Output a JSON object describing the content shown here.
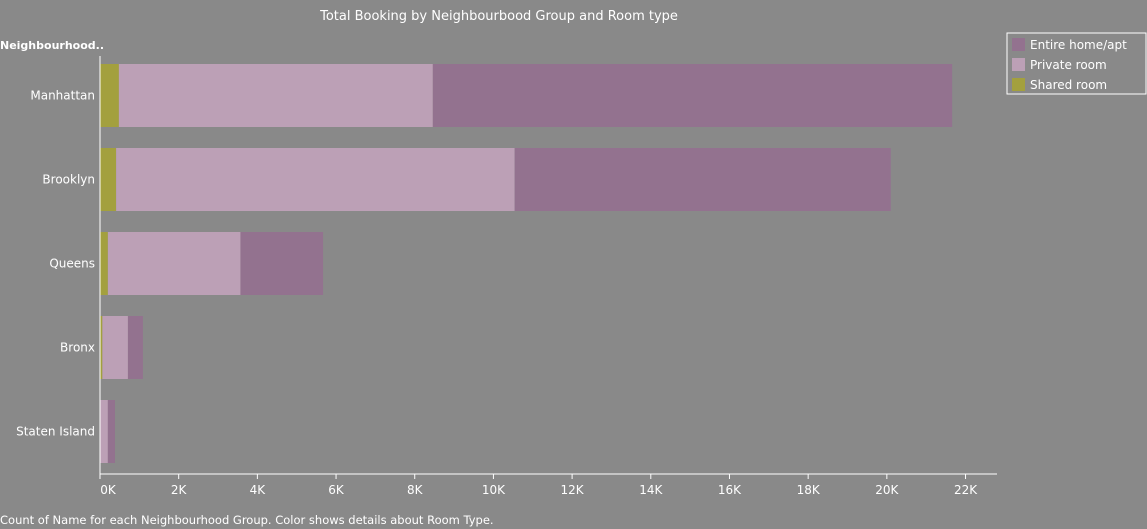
{
  "chart_data": {
    "type": "bar",
    "orientation": "horizontal",
    "stacked": true,
    "title": "Total Booking by Neighbourbood Group and Room type",
    "row_header": "Neighbourhood..",
    "caption": "Count of Name for each Neighbourhood Group.  Color shows details about Room Type.",
    "categories": [
      "Manhattan",
      "Brooklyn",
      "Queens",
      "Bronx",
      "Staten Island"
    ],
    "series": [
      {
        "name": "Shared room",
        "color": "#a3a03e",
        "values": [
          480,
          410,
          200,
          60,
          10
        ]
      },
      {
        "name": "Private room",
        "color": "#bca0b6",
        "values": [
          7980,
          10130,
          3370,
          650,
          190
        ]
      },
      {
        "name": "Entire home/apt",
        "color": "#93728f",
        "values": [
          13200,
          9560,
          2100,
          380,
          180
        ]
      }
    ],
    "legend": {
      "position": "top-right",
      "items": [
        {
          "label": "Entire home/apt",
          "color": "#93728f"
        },
        {
          "label": "Private room",
          "color": "#bca0b6"
        },
        {
          "label": "Shared room",
          "color": "#a3a03e"
        }
      ]
    },
    "xlim": [
      0,
      22800
    ],
    "x_ticks": [
      0,
      2000,
      4000,
      6000,
      8000,
      10000,
      12000,
      14000,
      16000,
      18000,
      20000,
      22000
    ],
    "x_tick_labels": [
      "0K",
      "2K",
      "4K",
      "6K",
      "8K",
      "10K",
      "12K",
      "14K",
      "16K",
      "18K",
      "20K",
      "22K"
    ],
    "grid": false
  }
}
